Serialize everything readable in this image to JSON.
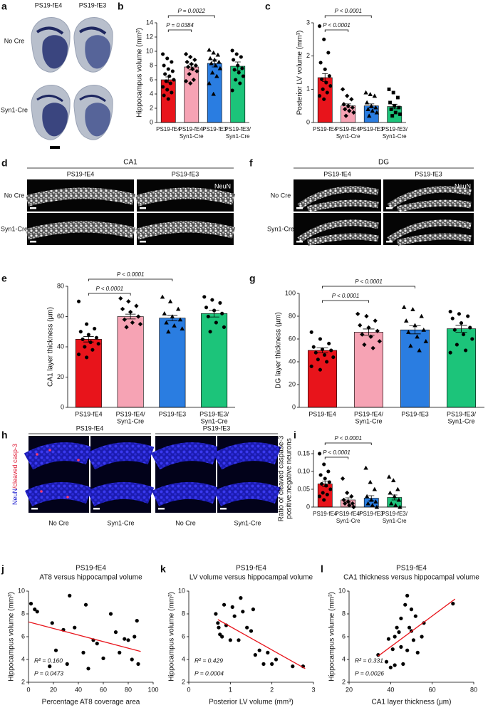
{
  "image_panels": [
    {
      "panel": "a",
      "columns": [
        "PS19-fE4",
        "PS19-fE3"
      ],
      "rows": [
        "No Cre",
        "Syn1-Cre"
      ]
    },
    {
      "panel": "d",
      "title": "CA1",
      "columns": [
        "PS19-fE4",
        "PS19-fE3"
      ],
      "rows": [
        "No Cre",
        "Syn1-Cre"
      ],
      "stain": "NeuN"
    },
    {
      "panel": "f",
      "title": "DG",
      "columns": [
        "PS19-fE4",
        "PS19-fE3"
      ],
      "rows": [
        "No Cre",
        "Syn1-Cre"
      ],
      "stain": "NeuN"
    },
    {
      "panel": "h",
      "columns": [
        "PS19-fE4",
        "PS19-fE3"
      ],
      "sublabels": [
        "No Cre",
        "Syn1-Cre",
        "No Cre",
        "Syn1-Cre"
      ],
      "stain": [
        "NeuN",
        "/cleaved casp-3"
      ]
    }
  ],
  "chart_data": [
    {
      "type": "bar",
      "panel": "b",
      "ylabel": "Hippocampus volume (mm³)",
      "categories": [
        [
          "PS19-fE4"
        ],
        [
          "PS19-fE4/",
          "Syn1-Cre"
        ],
        [
          "PS19-fE3"
        ],
        [
          "PS19-fE3/",
          "Syn1-Cre"
        ]
      ],
      "values": [
        6.0,
        7.8,
        8.3,
        7.9
      ],
      "errors": [
        0.4,
        0.4,
        0.5,
        0.6
      ],
      "points": [
        [
          9.6,
          9.0,
          8.5,
          8.0,
          7.5,
          7.2,
          6.8,
          6.5,
          6.0,
          5.8,
          5.5,
          5.0,
          4.6,
          4.2,
          3.8,
          3.3
        ],
        [
          9.6,
          9.2,
          8.8,
          8.5,
          8.2,
          8.0,
          7.8,
          7.5,
          7.2,
          6.8,
          6.0,
          5.8,
          5.5
        ],
        [
          10.2,
          9.8,
          9.5,
          9.0,
          8.8,
          8.5,
          8.3,
          8.0,
          7.6,
          7.0,
          6.5,
          5.5,
          4.0
        ],
        [
          10.1,
          9.6,
          9.2,
          8.8,
          8.0,
          7.6,
          7.4,
          7.0,
          6.5,
          6.0,
          5.5,
          4.5
        ]
      ],
      "colors": [
        "#e8141b",
        "#f6a3b4",
        "#2a7de1",
        "#1cc47a"
      ],
      "markers": [
        "circle",
        "diamond",
        "triangle",
        "circle"
      ],
      "ylim": [
        0,
        14
      ],
      "yticks": [
        0,
        2,
        4,
        6,
        8,
        10,
        12,
        14
      ],
      "comparisons": [
        {
          "from": 0,
          "to": 1,
          "label": "P = 0.0384"
        },
        {
          "from": 0,
          "to": 2,
          "label": "P = 0.0022"
        }
      ]
    },
    {
      "type": "bar",
      "panel": "c",
      "ylabel": "Posterior LV volume (mm³)",
      "categories": [
        [
          "PS19-fE4"
        ],
        [
          "PS19-fE4/",
          "Syn1-Cre"
        ],
        [
          "PS19-fE3"
        ],
        [
          "PS19-fE3/",
          "Syn1-Cre"
        ]
      ],
      "values": [
        1.35,
        0.5,
        0.5,
        0.48
      ],
      "errors": [
        0.12,
        0.06,
        0.06,
        0.07
      ],
      "points": [
        [
          2.9,
          2.5,
          2.1,
          1.8,
          1.6,
          1.4,
          1.3,
          1.2,
          1.1,
          1.0,
          0.9,
          0.8,
          0.7
        ],
        [
          1.0,
          0.8,
          0.7,
          0.55,
          0.5,
          0.45,
          0.4,
          0.35,
          0.3,
          0.2
        ],
        [
          0.9,
          0.85,
          0.8,
          0.6,
          0.5,
          0.45,
          0.4,
          0.35,
          0.3,
          0.2
        ],
        [
          1.0,
          0.9,
          0.75,
          0.6,
          0.5,
          0.45,
          0.4,
          0.3,
          0.25,
          0.2
        ]
      ],
      "colors": [
        "#e8141b",
        "#f6a3b4",
        "#2a7de1",
        "#1cc47a"
      ],
      "markers": [
        "circle",
        "diamond",
        "triangle",
        "square"
      ],
      "ylim": [
        0,
        3
      ],
      "yticks": [
        0,
        1,
        2,
        3
      ],
      "comparisons": [
        {
          "from": 0,
          "to": 1,
          "label": "P < 0.0001"
        },
        {
          "from": 0,
          "to": 2,
          "label": "P < 0.0001"
        }
      ]
    },
    {
      "type": "bar",
      "panel": "e",
      "ylabel": "CA1 layer thickness (µm)",
      "categories": [
        [
          "PS19-fE4"
        ],
        [
          "PS19-fE4/",
          "Syn1-Cre"
        ],
        [
          "PS19-fE3"
        ],
        [
          "PS19-fE3/",
          "Syn1-Cre"
        ]
      ],
      "values": [
        45,
        60,
        59,
        62
      ],
      "errors": [
        1.8,
        1.6,
        1.8,
        2.3
      ],
      "points": [
        [
          70,
          55,
          52,
          50,
          48,
          46,
          45,
          43,
          42,
          40,
          38,
          35,
          33
        ],
        [
          72,
          70,
          67,
          65,
          63,
          60,
          58,
          56,
          55,
          53
        ],
        [
          73,
          70,
          65,
          62,
          60,
          58,
          56,
          54,
          52,
          50
        ],
        [
          73,
          71,
          69,
          66,
          64,
          62,
          60,
          56,
          53,
          50
        ]
      ],
      "colors": [
        "#e8141b",
        "#f6a3b4",
        "#2a7de1",
        "#1cc47a"
      ],
      "markers": [
        "circle",
        "diamond",
        "triangle",
        "circle"
      ],
      "ylim": [
        0,
        80
      ],
      "yticks": [
        0,
        20,
        40,
        60,
        80
      ],
      "comparisons": [
        {
          "from": 0,
          "to": 1,
          "label": "P < 0.0001"
        },
        {
          "from": 0,
          "to": 2,
          "label": "P < 0.0001"
        }
      ]
    },
    {
      "type": "bar",
      "panel": "g",
      "ylabel": "DG layer thickness (µm)",
      "categories": [
        [
          "PS19-fE4"
        ],
        [
          "PS19-fE4/",
          "Syn1-Cre"
        ],
        [
          "PS19-fE3"
        ],
        [
          "PS19-fE3/",
          "Syn1-Cre"
        ]
      ],
      "values": [
        50,
        66,
        68,
        69
      ],
      "errors": [
        2.2,
        2.8,
        3.5,
        3.0
      ],
      "points": [
        [
          66,
          60,
          56,
          53,
          51,
          50,
          48,
          46,
          44,
          42,
          40,
          36,
          33
        ],
        [
          82,
          80,
          76,
          72,
          70,
          67,
          64,
          62,
          58,
          55,
          52
        ],
        [
          88,
          86,
          80,
          76,
          72,
          68,
          66,
          62,
          58,
          54,
          50
        ],
        [
          84,
          82,
          80,
          78,
          74,
          70,
          68,
          64,
          60,
          55,
          50,
          48
        ]
      ],
      "colors": [
        "#e8141b",
        "#f6a3b4",
        "#2a7de1",
        "#1cc47a"
      ],
      "markers": [
        "circle",
        "diamond",
        "triangle",
        "circle"
      ],
      "ylim": [
        0,
        100
      ],
      "yticks": [
        0,
        20,
        40,
        60,
        80,
        100
      ],
      "comparisons": [
        {
          "from": 0,
          "to": 1,
          "label": "P < 0.0001"
        },
        {
          "from": 0,
          "to": 2,
          "label": "P < 0.0001"
        }
      ]
    },
    {
      "type": "bar",
      "panel": "i",
      "ylabel": [
        "Ratio of cleaved caspase-3",
        "positive:negative neurons"
      ],
      "categories": [
        [
          "PS19-fE4"
        ],
        [
          "PS19-fE4/",
          "Syn1-Cre"
        ],
        [
          "PS19-fE3"
        ],
        [
          "PS19-fE3/",
          "Syn1-Cre"
        ]
      ],
      "values": [
        0.065,
        0.02,
        0.025,
        0.027
      ],
      "errors": [
        0.008,
        0.006,
        0.007,
        0.007
      ],
      "points": [
        [
          0.15,
          0.12,
          0.1,
          0.09,
          0.08,
          0.07,
          0.065,
          0.06,
          0.05,
          0.04,
          0.035,
          0.03,
          0.02
        ],
        [
          0.08,
          0.04,
          0.03,
          0.02,
          0.015,
          0.01,
          0.01,
          0.005,
          0
        ],
        [
          0.11,
          0.07,
          0.05,
          0.03,
          0.02,
          0.015,
          0.01,
          0.005,
          0
        ],
        [
          0.085,
          0.075,
          0.05,
          0.04,
          0.03,
          0.02,
          0.01,
          0.005,
          0
        ]
      ],
      "colors": [
        "#e8141b",
        "#f6a3b4",
        "#2a7de1",
        "#1cc47a"
      ],
      "markers": [
        "circle",
        "diamond",
        "triangle",
        "triangle"
      ],
      "ylim": [
        0,
        0.16
      ],
      "yticks": [
        0,
        0.05,
        {
          "value": 0.1,
          "label": "0.10"
        },
        0.15
      ],
      "comparisons": [
        {
          "from": 0,
          "to": 1,
          "label": "P < 0.0001"
        },
        {
          "from": 0,
          "to": 2,
          "label": "P < 0.0001"
        }
      ]
    },
    {
      "type": "scatter",
      "panel": "j",
      "title": "PS19-fE4",
      "subtitle": "AT8 versus hippocampal volume",
      "xlabel": "Percentage AT8 coverage area",
      "ylabel": "Hippocampus volume (mm³)",
      "x": [
        2,
        5,
        7,
        17,
        19,
        22,
        28,
        31,
        33,
        37,
        44,
        46,
        48,
        52,
        55,
        60,
        66,
        70,
        73,
        77,
        80,
        83,
        85,
        87,
        88
      ],
      "values": [
        8.9,
        8.4,
        8.2,
        3.4,
        7.2,
        4.8,
        6.6,
        3.6,
        9.6,
        6.8,
        4.6,
        8.8,
        3.2,
        5.7,
        5.4,
        4.1,
        8.0,
        6.4,
        4.6,
        5.8,
        5.7,
        4.0,
        6.0,
        7.4,
        3.6
      ],
      "color": "#000000",
      "fit": {
        "x": [
          0,
          90
        ],
        "y": [
          7.3,
          4.7
        ],
        "color": "#e8141b"
      },
      "annotations": [
        "R² = 0.160",
        "P = 0.0473"
      ],
      "xlim": [
        0,
        100
      ],
      "xticks": [
        0,
        20,
        40,
        60,
        80,
        100
      ],
      "ylim": [
        2,
        10
      ],
      "yticks": [
        2,
        4,
        6,
        8,
        10
      ]
    },
    {
      "type": "scatter",
      "panel": "k",
      "title": "PS19-fE4",
      "subtitle": "LV volume versus hippocampal volume",
      "xlabel": "Posterior LV volume (mm³)",
      "ylabel": "Hippocampus volume (mm³)",
      "x": [
        0.65,
        0.7,
        0.72,
        0.75,
        0.8,
        0.85,
        0.9,
        1.0,
        1.05,
        1.1,
        1.2,
        1.25,
        1.3,
        1.4,
        1.5,
        1.55,
        1.6,
        1.7,
        1.8,
        1.9,
        2.0,
        2.1,
        2.5,
        2.75
      ],
      "values": [
        8.0,
        7.2,
        6.8,
        6.2,
        6.0,
        8.8,
        7.0,
        5.7,
        8.6,
        7.8,
        5.7,
        9.4,
        8.2,
        6.8,
        6.5,
        8.4,
        4.4,
        4.8,
        3.6,
        4.6,
        3.6,
        4.0,
        3.4,
        3.4
      ],
      "color": "#000000",
      "fit": {
        "x": [
          0.7,
          2.8
        ],
        "y": [
          7.5,
          3.2
        ],
        "color": "#e8141b"
      },
      "annotations": [
        "R² = 0.429",
        "P = 0.0004"
      ],
      "xlim": [
        0,
        3
      ],
      "xticks": [
        0,
        1,
        2,
        3
      ],
      "ylim": [
        2,
        10
      ],
      "yticks": [
        2,
        4,
        6,
        8,
        10
      ]
    },
    {
      "type": "scatter",
      "panel": "l",
      "title": "PS19-fE4",
      "subtitle": "CA1 thickness versus hippocampal volume",
      "xlabel": "CA1 layer thickness (µm)",
      "ylabel": "Hippocampus volume (mm³)",
      "x": [
        34,
        38,
        39,
        40,
        41,
        42,
        42,
        43,
        44,
        45,
        45,
        46,
        47,
        48,
        48,
        49,
        50,
        50,
        51,
        52,
        53,
        55,
        56,
        70
      ],
      "values": [
        4.4,
        3.8,
        5.8,
        3.3,
        4.9,
        3.5,
        6.0,
        6.8,
        6.4,
        7.6,
        5.1,
        3.6,
        8.8,
        9.6,
        4.8,
        6.8,
        6.5,
        8.4,
        5.7,
        7.8,
        4.6,
        6.0,
        7.2,
        8.9
      ],
      "color": "#000000",
      "fit": {
        "x": [
          34,
          71
        ],
        "y": [
          4.3,
          9.3
        ],
        "color": "#e8141b"
      },
      "annotations": [
        "R² = 0.331",
        "P = 0.0026"
      ],
      "xlim": [
        20,
        80
      ],
      "xticks": [
        20,
        40,
        60,
        80
      ],
      "ylim": [
        2,
        10
      ],
      "yticks": [
        2,
        4,
        6,
        8,
        10
      ]
    }
  ]
}
